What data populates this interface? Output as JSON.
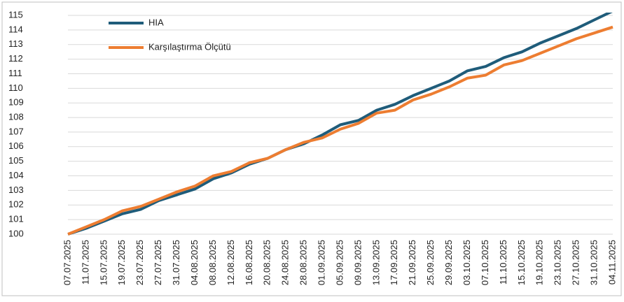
{
  "chart_data": {
    "type": "line",
    "categories": [
      "07.07.2025",
      "11.07.2025",
      "15.07.2025",
      "19.07.2025",
      "23.07.2025",
      "27.07.2025",
      "31.07.2025",
      "04.08.2025",
      "08.08.2025",
      "12.08.2025",
      "16.08.2025",
      "20.08.2025",
      "24.08.2025",
      "28.08.2025",
      "01.09.2025",
      "05.09.2025",
      "09.09.2025",
      "13.09.2025",
      "17.09.2025",
      "21.09.2025",
      "25.09.2025",
      "29.09.2025",
      "03.10.2025",
      "07.10.2025",
      "11.10.2025",
      "15.10.2025",
      "19.10.2025",
      "23.10.2025",
      "27.10.2025",
      "31.10.2025",
      "04.11.2025"
    ],
    "series": [
      {
        "name": "HIA",
        "color": "#1f5c7a",
        "values": [
          100.0,
          100.4,
          100.9,
          101.4,
          101.7,
          102.3,
          102.7,
          103.1,
          103.8,
          104.2,
          104.8,
          105.2,
          105.8,
          106.2,
          106.8,
          107.5,
          107.8,
          108.5,
          108.9,
          109.5,
          110.0,
          110.5,
          111.2,
          111.5,
          112.1,
          112.5,
          113.1,
          113.6,
          114.1,
          114.7,
          115.3
        ]
      },
      {
        "name": "Karşılaştırma Ölçütü",
        "color": "#ed7d31",
        "values": [
          100.0,
          100.5,
          101.0,
          101.6,
          101.9,
          102.4,
          102.9,
          103.3,
          104.0,
          104.3,
          104.9,
          105.2,
          105.8,
          106.3,
          106.6,
          107.2,
          107.6,
          108.3,
          108.5,
          109.2,
          109.6,
          110.1,
          110.7,
          110.9,
          111.6,
          111.9,
          112.4,
          112.9,
          113.4,
          113.8,
          114.2
        ]
      }
    ],
    "ylim": [
      100,
      115
    ],
    "yticks": [
      100,
      101,
      102,
      103,
      104,
      105,
      106,
      107,
      108,
      109,
      110,
      111,
      112,
      113,
      114,
      115
    ],
    "grid": true,
    "legend": "top-left"
  }
}
